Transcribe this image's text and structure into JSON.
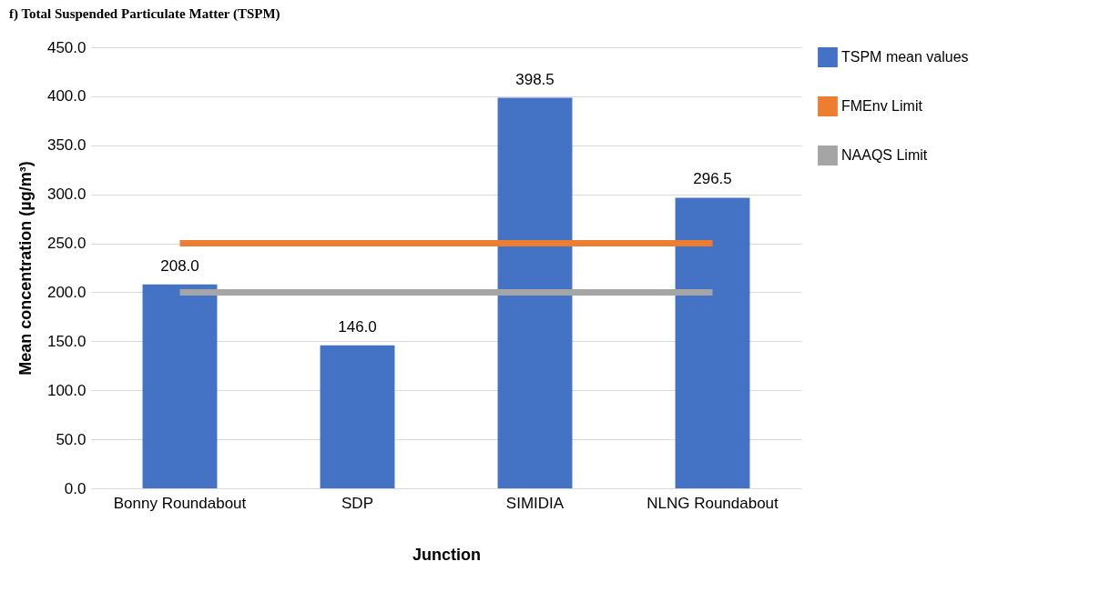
{
  "chart_data": {
    "type": "bar",
    "title": "f)        Total Suspended Particulate Matter (TSPM)",
    "xlabel": "Junction",
    "ylabel": "Mean concentration (µg/m³)",
    "categories": [
      "Bonny Roundabout",
      "SDP",
      "SIMIDIA",
      "NLNG Roundabout"
    ],
    "series": [
      {
        "name": "TSPM mean values",
        "color": "#4472c4",
        "values": [
          208.0,
          146.0,
          398.5,
          296.5
        ],
        "value_labels": [
          "208.0",
          "146.0",
          "398.5",
          "296.5"
        ]
      },
      {
        "name": "FMEnv Limit",
        "type": "line",
        "color": "#ed7d31",
        "values": [
          250,
          250,
          250,
          250
        ]
      },
      {
        "name": "NAAQS  Limit",
        "type": "line",
        "color": "#a5a5a5",
        "values": [
          200,
          200,
          200,
          200
        ]
      }
    ],
    "ylim": [
      0,
      450
    ],
    "yticks": [
      {
        "value": 0,
        "label": "0.0"
      },
      {
        "value": 50,
        "label": "50.0"
      },
      {
        "value": 100,
        "label": "100.0"
      },
      {
        "value": 150,
        "label": "150.0"
      },
      {
        "value": 200,
        "label": "200.0"
      },
      {
        "value": 250,
        "label": "250.0"
      },
      {
        "value": 300,
        "label": "300.0"
      },
      {
        "value": 350,
        "label": "350.0"
      },
      {
        "value": 400,
        "label": "400.0"
      },
      {
        "value": 450,
        "label": "450.0"
      }
    ],
    "grid": "y",
    "legend": "right"
  }
}
